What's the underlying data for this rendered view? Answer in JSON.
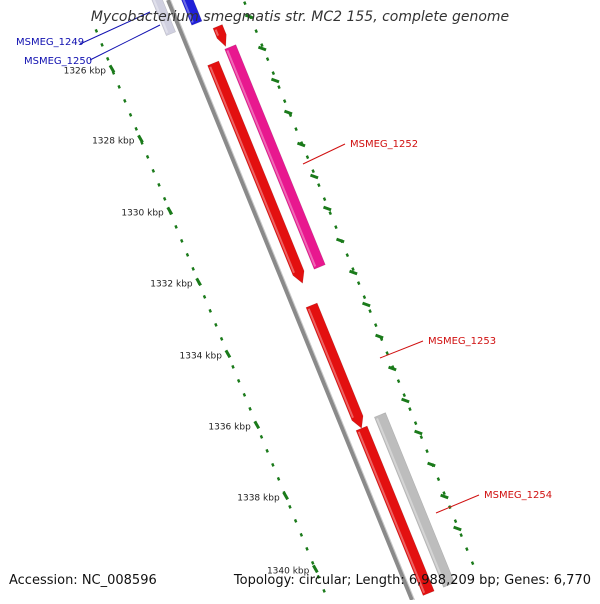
{
  "title": "Mycobacterium smegmatis str. MC2 155, complete genome",
  "footer": {
    "accession": "Accession: NC_008596",
    "summary": "Topology: circular; Length: 6,988,209 bp; Genes: 6,770"
  },
  "colors": {
    "backbone": "#8a8a8a",
    "tick": "#1a7a1a",
    "gene_red": "#e31010",
    "gene_pink": "#e8188f",
    "gene_gray": "#bdbdbd",
    "gene_blue": "#2020d8",
    "label_red": "#d01010",
    "label_blue": "#1010b0"
  },
  "scale_labels": [
    "1326 kbp",
    "1328 kbp",
    "1330 kbp",
    "1332 kbp",
    "1334 kbp",
    "1336 kbp",
    "1338 kbp",
    "1340 kbp"
  ],
  "gene_labels": [
    {
      "text": "MSMEG_1249",
      "color": "blue"
    },
    {
      "text": "MSMEG_1250",
      "color": "blue"
    },
    {
      "text": "MSMEG_1252",
      "color": "red"
    },
    {
      "text": "MSMEG_1253",
      "color": "red"
    },
    {
      "text": "MSMEG_1254",
      "color": "red"
    }
  ]
}
